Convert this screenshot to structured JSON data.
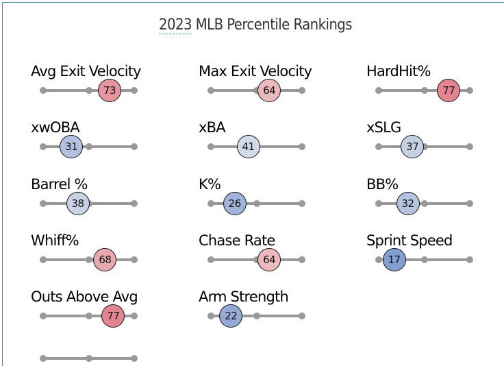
{
  "title_year": "2023",
  "title_rest": " MLB Percentile Rankings",
  "chart_data": {
    "type": "scatter",
    "title": "2023 MLB Percentile Rankings",
    "xlim": [
      0,
      100
    ],
    "metrics": [
      {
        "label": "Avg Exit Velocity",
        "percentile": 73
      },
      {
        "label": "Max Exit Velocity",
        "percentile": 64
      },
      {
        "label": "HardHit%",
        "percentile": 77
      },
      {
        "label": "xwOBA",
        "percentile": 31
      },
      {
        "label": "xBA",
        "percentile": 41
      },
      {
        "label": "xSLG",
        "percentile": 37
      },
      {
        "label": "Barrel %",
        "percentile": 38
      },
      {
        "label": "K%",
        "percentile": 26
      },
      {
        "label": "BB%",
        "percentile": 32
      },
      {
        "label": "Whiff%",
        "percentile": 68
      },
      {
        "label": "Chase Rate",
        "percentile": 64
      },
      {
        "label": "Sprint Speed",
        "percentile": 17
      },
      {
        "label": "Outs Above Avg",
        "percentile": 77
      },
      {
        "label": "Arm Strength",
        "percentile": 22
      }
    ]
  },
  "colors": {
    "low": "#5a7fc4",
    "mid": "#f0f0f0",
    "high": "#d83c4e",
    "frame": "#4b8f9f"
  }
}
